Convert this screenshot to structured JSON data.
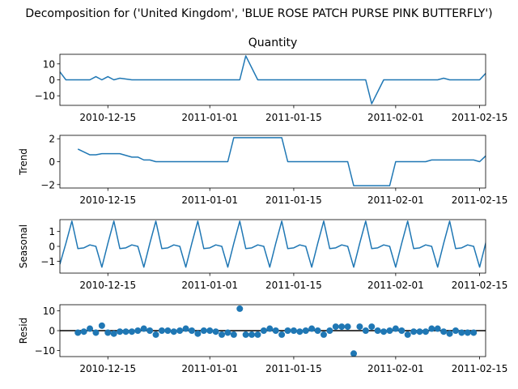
{
  "figure": {
    "suptitle": "Decomposition for ('United Kingdom', 'BLUE ROSE PATCH PURSE PINK BUTTERFLY')"
  },
  "colors": {
    "line": "#1f77b4",
    "zero_line": "#000000",
    "axes": "#000000"
  },
  "chart_data": [
    {
      "type": "line",
      "title": "Quantity",
      "ylabel": "",
      "x_start": "2010-12-07",
      "x_end": "2011-02-16",
      "x_ticks": [
        "2010-12-15",
        "2011-01-01",
        "2011-01-15",
        "2011-02-01",
        "2011-02-15"
      ],
      "ylim": [
        -16,
        16
      ],
      "y_ticks": [
        -10,
        0,
        10
      ],
      "series": [
        {
          "points": [
            [
              "2010-12-07",
              5
            ],
            [
              "2010-12-08",
              0
            ],
            [
              "2010-12-09",
              0
            ],
            [
              "2010-12-10",
              0
            ],
            [
              "2010-12-12",
              0
            ],
            [
              "2010-12-13",
              2
            ],
            [
              "2010-12-14",
              0
            ],
            [
              "2010-12-15",
              2
            ],
            [
              "2010-12-16",
              0
            ],
            [
              "2010-12-17",
              1
            ],
            [
              "2010-12-19",
              0
            ],
            [
              "2010-12-20",
              0
            ],
            [
              "2010-12-21",
              0
            ],
            [
              "2010-12-22",
              0
            ],
            [
              "2010-12-23",
              0
            ],
            [
              "2010-12-24",
              0
            ],
            [
              "2011-01-04",
              0
            ],
            [
              "2011-01-05",
              0
            ],
            [
              "2011-01-06",
              0
            ],
            [
              "2011-01-07",
              15
            ],
            [
              "2011-01-09",
              0
            ],
            [
              "2011-01-27",
              0
            ],
            [
              "2011-01-28",
              -15
            ],
            [
              "2011-01-30",
              0
            ],
            [
              "2011-02-08",
              0
            ],
            [
              "2011-02-09",
              1
            ],
            [
              "2011-02-10",
              0
            ],
            [
              "2011-02-15",
              0
            ],
            [
              "2011-02-16",
              4
            ],
            [
              "2011-02-17",
              0
            ],
            [
              "2011-02-18",
              1
            ]
          ]
        }
      ]
    },
    {
      "type": "line",
      "title": "",
      "ylabel": "Trend",
      "x_start": "2010-12-07",
      "x_end": "2011-02-16",
      "x_ticks": [
        "2010-12-15",
        "2011-01-01",
        "2011-01-15",
        "2011-02-01",
        "2011-02-15"
      ],
      "ylim": [
        -2.3,
        2.3
      ],
      "y_ticks": [
        -2,
        0,
        2
      ],
      "series": [
        {
          "points": [
            [
              "2010-12-10",
              1.1
            ],
            [
              "2010-12-12",
              0.6
            ],
            [
              "2010-12-13",
              0.6
            ],
            [
              "2010-12-14",
              0.7
            ],
            [
              "2010-12-17",
              0.7
            ],
            [
              "2010-12-19",
              0.4
            ],
            [
              "2010-12-20",
              0.4
            ],
            [
              "2010-12-21",
              0.15
            ],
            [
              "2010-12-22",
              0.15
            ],
            [
              "2010-12-23",
              0.0
            ],
            [
              "2011-01-04",
              0.0
            ],
            [
              "2011-01-05",
              2.1
            ],
            [
              "2011-01-09",
              2.1
            ],
            [
              "2011-01-10",
              2.1
            ],
            [
              "2011-01-13",
              2.1
            ],
            [
              "2011-01-14",
              0.0
            ],
            [
              "2011-01-24",
              0.0
            ],
            [
              "2011-01-25",
              -2.1
            ],
            [
              "2011-01-31",
              -2.1
            ],
            [
              "2011-02-01",
              0.0
            ],
            [
              "2011-02-06",
              0.0
            ],
            [
              "2011-02-07",
              0.15
            ],
            [
              "2011-02-14",
              0.15
            ],
            [
              "2011-02-15",
              0.0
            ],
            [
              "2011-02-16",
              0.5
            ],
            [
              "2011-02-17",
              0.5
            ],
            [
              "2011-02-18",
              0.7
            ]
          ]
        }
      ]
    },
    {
      "type": "line",
      "title": "",
      "ylabel": "Seasonal",
      "x_start": "2010-12-07",
      "x_end": "2011-02-16",
      "x_ticks": [
        "2010-12-15",
        "2011-01-01",
        "2011-01-15",
        "2011-02-01",
        "2011-02-15"
      ],
      "ylim": [
        -1.8,
        1.8
      ],
      "y_ticks": [
        -1,
        0,
        1
      ],
      "series": [
        {
          "period": 7,
          "points": [
            [
              "2010-12-07",
              -1.2
            ],
            [
              "2010-12-08",
              0.2
            ],
            [
              "2010-12-09",
              1.7
            ],
            [
              "2010-12-10",
              -0.15
            ],
            [
              "2010-12-11",
              -0.1
            ],
            [
              "2010-12-12",
              0.1
            ],
            [
              "2010-12-13",
              0.0
            ],
            [
              "2010-12-14",
              -1.4
            ],
            [
              "2010-12-15",
              0.2
            ],
            [
              "2010-12-16",
              1.7
            ],
            [
              "2010-12-17",
              -0.15
            ],
            [
              "2010-12-18",
              -0.1
            ],
            [
              "2010-12-19",
              0.1
            ],
            [
              "2010-12-20",
              0.0
            ],
            [
              "2010-12-21",
              -1.4
            ],
            [
              "2010-12-22",
              0.2
            ],
            [
              "2010-12-23",
              1.7
            ],
            [
              "2010-12-24",
              -0.15
            ],
            [
              "2010-12-25",
              -0.1
            ],
            [
              "2010-12-26",
              0.1
            ],
            [
              "2010-12-27",
              0.0
            ],
            [
              "2010-12-28",
              -1.4
            ],
            [
              "2010-12-29",
              0.2
            ],
            [
              "2010-12-30",
              1.7
            ],
            [
              "2010-12-31",
              -0.15
            ],
            [
              "2011-01-01",
              -0.1
            ],
            [
              "2011-01-02",
              0.1
            ],
            [
              "2011-01-03",
              0.0
            ],
            [
              "2011-01-04",
              -1.4
            ],
            [
              "2011-01-05",
              0.2
            ],
            [
              "2011-01-06",
              1.7
            ],
            [
              "2011-01-07",
              -0.15
            ],
            [
              "2011-01-08",
              -0.1
            ],
            [
              "2011-01-09",
              0.1
            ],
            [
              "2011-01-10",
              0.0
            ],
            [
              "2011-01-11",
              -1.4
            ],
            [
              "2011-01-12",
              0.2
            ],
            [
              "2011-01-13",
              1.7
            ],
            [
              "2011-01-14",
              -0.15
            ],
            [
              "2011-01-15",
              -0.1
            ],
            [
              "2011-01-16",
              0.1
            ],
            [
              "2011-01-17",
              0.0
            ],
            [
              "2011-01-18",
              -1.4
            ],
            [
              "2011-01-19",
              0.2
            ],
            [
              "2011-01-20",
              1.7
            ],
            [
              "2011-01-21",
              -0.15
            ],
            [
              "2011-01-22",
              -0.1
            ],
            [
              "2011-01-23",
              0.1
            ],
            [
              "2011-01-24",
              0.0
            ],
            [
              "2011-01-25",
              -1.4
            ],
            [
              "2011-01-26",
              0.2
            ],
            [
              "2011-01-27",
              1.7
            ],
            [
              "2011-01-28",
              -0.15
            ],
            [
              "2011-01-29",
              -0.1
            ],
            [
              "2011-01-30",
              0.1
            ],
            [
              "2011-01-31",
              0.0
            ],
            [
              "2011-02-01",
              -1.4
            ],
            [
              "2011-02-02",
              0.2
            ],
            [
              "2011-02-03",
              1.7
            ],
            [
              "2011-02-04",
              -0.15
            ],
            [
              "2011-02-05",
              -0.1
            ],
            [
              "2011-02-06",
              0.1
            ],
            [
              "2011-02-07",
              0.0
            ],
            [
              "2011-02-08",
              -1.4
            ],
            [
              "2011-02-09",
              0.2
            ],
            [
              "2011-02-10",
              1.7
            ],
            [
              "2011-02-11",
              -0.15
            ],
            [
              "2011-02-12",
              -0.1
            ],
            [
              "2011-02-13",
              0.1
            ],
            [
              "2011-02-14",
              0.0
            ],
            [
              "2011-02-15",
              -1.4
            ],
            [
              "2011-02-16",
              0.2
            ],
            [
              "2011-02-17",
              1.7
            ]
          ]
        }
      ]
    },
    {
      "type": "scatter",
      "title": "",
      "ylabel": "Resid",
      "x_start": "2010-12-07",
      "x_end": "2011-02-16",
      "x_ticks": [
        "2010-12-15",
        "2011-01-01",
        "2011-01-15",
        "2011-02-01",
        "2011-02-15"
      ],
      "ylim": [
        -13,
        13
      ],
      "y_ticks": [
        -10,
        0,
        10
      ],
      "baseline": 0,
      "series": [
        {
          "points": [
            [
              "2010-12-10",
              -1
            ],
            [
              "2010-12-11",
              -0.5
            ],
            [
              "2010-12-12",
              1
            ],
            [
              "2010-12-13",
              -1
            ],
            [
              "2010-12-14",
              2.5
            ],
            [
              "2010-12-15",
              -1
            ],
            [
              "2010-12-16",
              -1.5
            ],
            [
              "2010-12-17",
              -0.5
            ],
            [
              "2010-12-18",
              -0.5
            ],
            [
              "2010-12-19",
              -0.5
            ],
            [
              "2010-12-20",
              0
            ],
            [
              "2010-12-21",
              1
            ],
            [
              "2010-12-22",
              0
            ],
            [
              "2010-12-23",
              -2
            ],
            [
              "2010-12-24",
              0
            ],
            [
              "2010-12-25",
              0
            ],
            [
              "2010-12-26",
              -0.5
            ],
            [
              "2010-12-27",
              0
            ],
            [
              "2010-12-28",
              1
            ],
            [
              "2010-12-29",
              0
            ],
            [
              "2010-12-30",
              -1.5
            ],
            [
              "2010-12-31",
              0
            ],
            [
              "2011-01-01",
              0
            ],
            [
              "2011-01-02",
              -0.5
            ],
            [
              "2011-01-03",
              -2
            ],
            [
              "2011-01-04",
              -1
            ],
            [
              "2011-01-05",
              -2
            ],
            [
              "2011-01-06",
              11
            ],
            [
              "2011-01-07",
              -2
            ],
            [
              "2011-01-08",
              -2
            ],
            [
              "2011-01-09",
              -2
            ],
            [
              "2011-01-10",
              0
            ],
            [
              "2011-01-11",
              1
            ],
            [
              "2011-01-12",
              0
            ],
            [
              "2011-01-13",
              -2
            ],
            [
              "2011-01-14",
              0
            ],
            [
              "2011-01-15",
              0
            ],
            [
              "2011-01-16",
              -0.5
            ],
            [
              "2011-01-17",
              0
            ],
            [
              "2011-01-18",
              1
            ],
            [
              "2011-01-19",
              0
            ],
            [
              "2011-01-20",
              -2
            ],
            [
              "2011-01-21",
              0
            ],
            [
              "2011-01-22",
              2
            ],
            [
              "2011-01-23",
              2
            ],
            [
              "2011-01-24",
              2
            ],
            [
              "2011-01-25",
              -11.5
            ],
            [
              "2011-01-26",
              2
            ],
            [
              "2011-01-27",
              0
            ],
            [
              "2011-01-28",
              2
            ],
            [
              "2011-01-29",
              0
            ],
            [
              "2011-01-30",
              -0.5
            ],
            [
              "2011-01-31",
              0
            ],
            [
              "2011-02-01",
              1
            ],
            [
              "2011-02-02",
              0
            ],
            [
              "2011-02-03",
              -2
            ],
            [
              "2011-02-04",
              -0.5
            ],
            [
              "2011-02-05",
              -0.5
            ],
            [
              "2011-02-06",
              -0.5
            ],
            [
              "2011-02-07",
              1
            ],
            [
              "2011-02-08",
              1
            ],
            [
              "2011-02-09",
              -0.5
            ],
            [
              "2011-02-10",
              -1.5
            ],
            [
              "2011-02-11",
              0
            ],
            [
              "2011-02-12",
              -1
            ],
            [
              "2011-02-13",
              -1
            ],
            [
              "2011-02-14",
              -1
            ]
          ]
        }
      ]
    }
  ]
}
